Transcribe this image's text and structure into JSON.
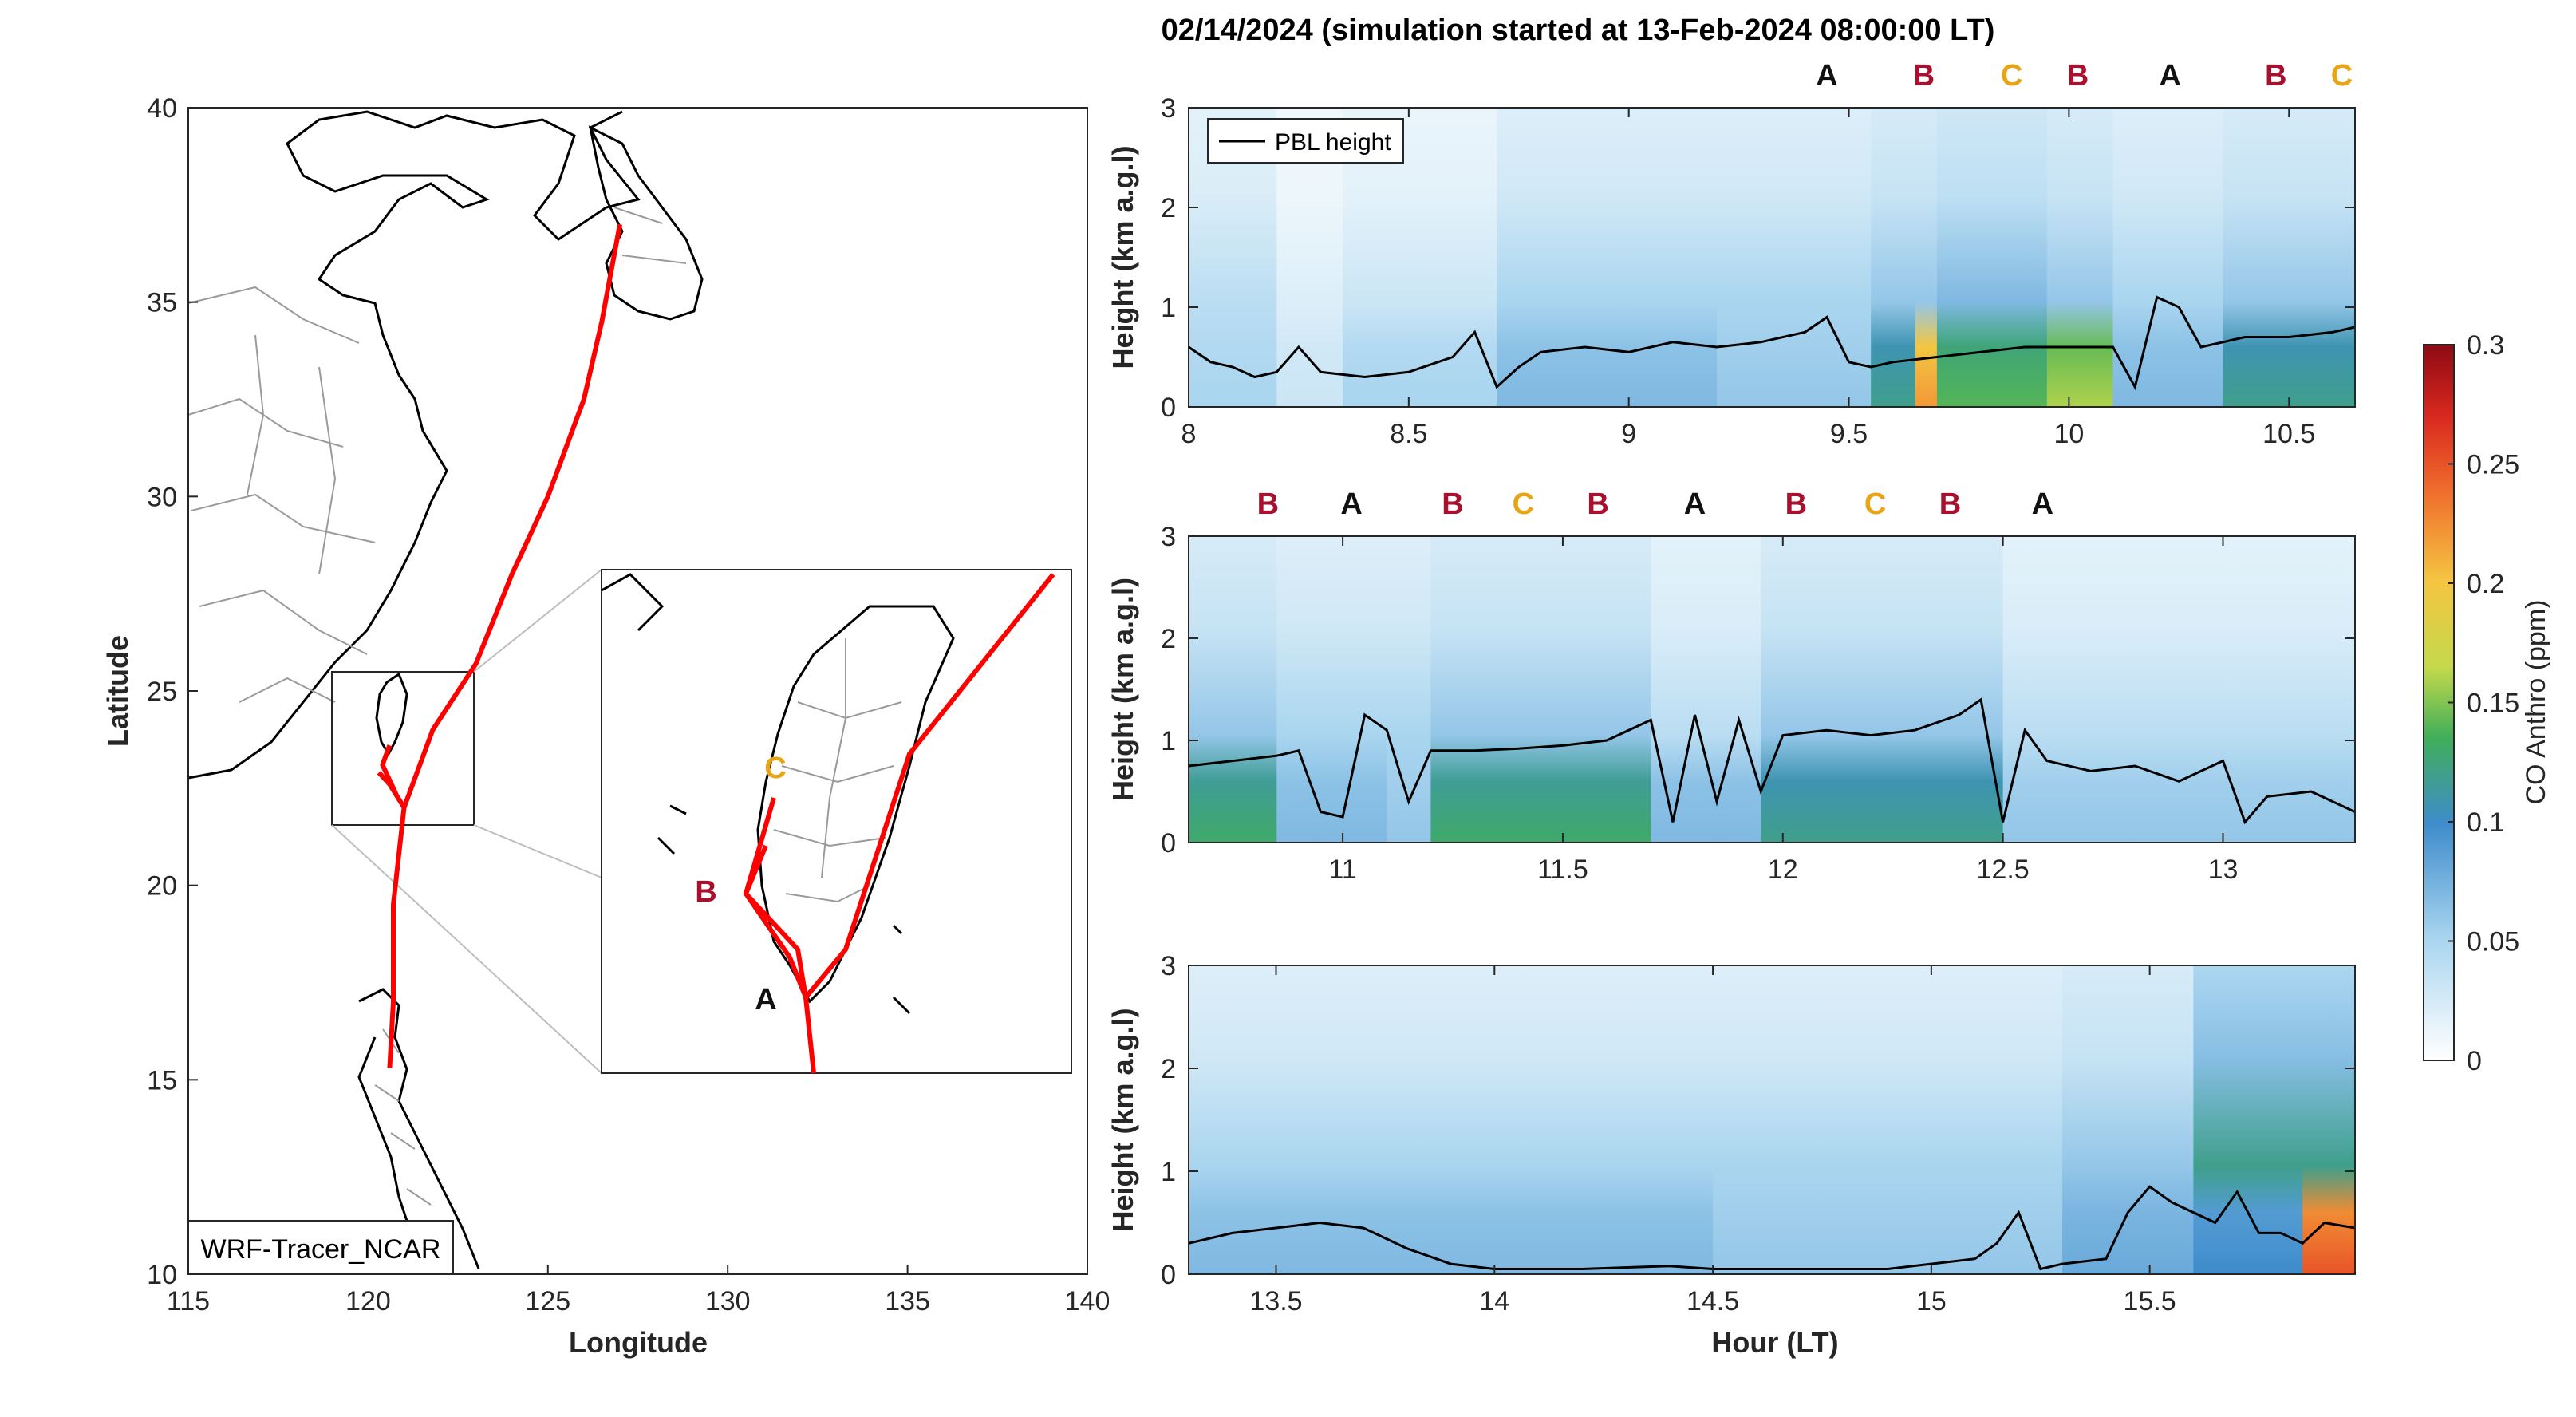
{
  "title": "02/14/2024 (simulation started at 13-Feb-2024 08:00:00 LT)",
  "colors": {
    "A": "#111111",
    "B": "#a8102e",
    "C": "#e8a414",
    "track": "#ff0000",
    "pbl": "#000000"
  },
  "map": {
    "xlabel": "Longitude",
    "ylabel": "Latitude",
    "xlim": [
      115,
      140
    ],
    "ylim": [
      10,
      40
    ],
    "xticks": [
      "115",
      "120",
      "125",
      "130",
      "135",
      "140"
    ],
    "yticks": [
      "10",
      "15",
      "20",
      "25",
      "30",
      "35",
      "40"
    ],
    "label": "WRF-Tracer_NCAR",
    "inset_markers": [
      "A",
      "B",
      "C"
    ],
    "track": [
      [
        127.0,
        37.0
      ],
      [
        126.5,
        34.5
      ],
      [
        126.0,
        32.5
      ],
      [
        125.0,
        30.0
      ],
      [
        124.0,
        28.0
      ],
      [
        123.0,
        25.7
      ],
      [
        121.8,
        24.0
      ],
      [
        121.0,
        22.0
      ],
      [
        120.7,
        19.5
      ],
      [
        120.7,
        17.0
      ],
      [
        120.6,
        15.3
      ]
    ],
    "local_track": [
      [
        120.6,
        23.6
      ],
      [
        120.4,
        23.1
      ],
      [
        120.8,
        22.3
      ],
      [
        121.0,
        22.0
      ],
      [
        120.6,
        22.6
      ],
      [
        120.3,
        22.9
      ]
    ]
  },
  "chart_data": [
    {
      "type": "heatmap",
      "ylabel": "Height (km a.g.l)",
      "xlim": [
        8.0,
        10.65
      ],
      "ylim": [
        0,
        3
      ],
      "xticks": [
        "8",
        "8.5",
        "9",
        "9.5",
        "10",
        "10.5"
      ],
      "yticks": [
        "0",
        "1",
        "2",
        "3"
      ],
      "legend": "PBL height",
      "markers": [
        {
          "label": "A",
          "x": 9.45
        },
        {
          "label": "B",
          "x": 9.67
        },
        {
          "label": "C",
          "x": 9.87
        },
        {
          "label": "B",
          "x": 10.02
        },
        {
          "label": "A",
          "x": 10.23
        },
        {
          "label": "B",
          "x": 10.47
        },
        {
          "label": "C",
          "x": 10.62
        }
      ],
      "pbl": {
        "x": [
          8.0,
          8.05,
          8.1,
          8.15,
          8.2,
          8.25,
          8.3,
          8.4,
          8.5,
          8.6,
          8.65,
          8.7,
          8.75,
          8.8,
          8.9,
          9.0,
          9.1,
          9.2,
          9.3,
          9.4,
          9.45,
          9.5,
          9.55,
          9.6,
          9.7,
          9.8,
          9.9,
          10.0,
          10.1,
          10.15,
          10.2,
          10.25,
          10.3,
          10.35,
          10.4,
          10.5,
          10.6,
          10.65
        ],
        "y": [
          0.6,
          0.45,
          0.4,
          0.3,
          0.35,
          0.6,
          0.35,
          0.3,
          0.35,
          0.5,
          0.75,
          0.2,
          0.4,
          0.55,
          0.6,
          0.55,
          0.65,
          0.6,
          0.65,
          0.75,
          0.9,
          0.45,
          0.4,
          0.45,
          0.5,
          0.55,
          0.6,
          0.6,
          0.6,
          0.2,
          1.1,
          1.0,
          0.6,
          0.65,
          0.7,
          0.7,
          0.75,
          0.8
        ]
      },
      "co_columns": [
        {
          "x0": 8.0,
          "x1": 8.2,
          "surface": 0.05,
          "mid": 0.04
        },
        {
          "x0": 8.2,
          "x1": 8.35,
          "surface": 0.03,
          "mid": 0.02
        },
        {
          "x0": 8.35,
          "x1": 8.7,
          "surface": 0.05,
          "mid": 0.03
        },
        {
          "x0": 8.7,
          "x1": 9.2,
          "surface": 0.07,
          "mid": 0.05
        },
        {
          "x0": 9.2,
          "x1": 9.55,
          "surface": 0.06,
          "mid": 0.05
        },
        {
          "x0": 9.55,
          "x1": 9.65,
          "surface": 0.12,
          "mid": 0.06
        },
        {
          "x0": 9.65,
          "x1": 9.7,
          "surface": 0.22,
          "mid": 0.06
        },
        {
          "x0": 9.7,
          "x1": 9.95,
          "surface": 0.14,
          "mid": 0.07
        },
        {
          "x0": 9.95,
          "x1": 10.1,
          "surface": 0.16,
          "mid": 0.06
        },
        {
          "x0": 10.1,
          "x1": 10.35,
          "surface": 0.07,
          "mid": 0.05
        },
        {
          "x0": 10.35,
          "x1": 10.65,
          "surface": 0.12,
          "mid": 0.06
        }
      ]
    },
    {
      "type": "heatmap",
      "ylabel": "Height (km a.g.l)",
      "xlim": [
        10.65,
        13.3
      ],
      "ylim": [
        0,
        3
      ],
      "xticks": [
        "11",
        "11.5",
        "12",
        "12.5",
        "13"
      ],
      "yticks": [
        "0",
        "1",
        "2",
        "3"
      ],
      "markers": [
        {
          "label": "B",
          "x": 10.83
        },
        {
          "label": "A",
          "x": 11.02
        },
        {
          "label": "B",
          "x": 11.25
        },
        {
          "label": "C",
          "x": 11.41
        },
        {
          "label": "B",
          "x": 11.58
        },
        {
          "label": "A",
          "x": 11.8
        },
        {
          "label": "B",
          "x": 12.03
        },
        {
          "label": "C",
          "x": 12.21
        },
        {
          "label": "B",
          "x": 12.38
        },
        {
          "label": "A",
          "x": 12.59
        }
      ],
      "pbl": {
        "x": [
          10.65,
          10.75,
          10.85,
          10.9,
          10.95,
          11.0,
          11.05,
          11.1,
          11.15,
          11.2,
          11.3,
          11.4,
          11.5,
          11.6,
          11.7,
          11.75,
          11.8,
          11.85,
          11.9,
          11.95,
          12.0,
          12.1,
          12.2,
          12.3,
          12.4,
          12.45,
          12.5,
          12.55,
          12.6,
          12.7,
          12.8,
          12.9,
          13.0,
          13.05,
          13.1,
          13.2,
          13.3
        ],
        "y": [
          0.75,
          0.8,
          0.85,
          0.9,
          0.3,
          0.25,
          1.25,
          1.1,
          0.4,
          0.9,
          0.9,
          0.92,
          0.95,
          1.0,
          1.2,
          0.2,
          1.25,
          0.4,
          1.2,
          0.5,
          1.05,
          1.1,
          1.05,
          1.1,
          1.25,
          1.4,
          0.2,
          1.1,
          0.8,
          0.7,
          0.75,
          0.6,
          0.8,
          0.2,
          0.45,
          0.5,
          0.3
        ]
      },
      "co_columns": [
        {
          "x0": 10.65,
          "x1": 10.85,
          "surface": 0.13,
          "mid": 0.06
        },
        {
          "x0": 10.85,
          "x1": 11.1,
          "surface": 0.07,
          "mid": 0.05
        },
        {
          "x0": 11.1,
          "x1": 11.2,
          "surface": 0.06,
          "mid": 0.05
        },
        {
          "x0": 11.2,
          "x1": 11.7,
          "surface": 0.13,
          "mid": 0.06
        },
        {
          "x0": 11.7,
          "x1": 11.95,
          "surface": 0.07,
          "mid": 0.04
        },
        {
          "x0": 11.95,
          "x1": 12.5,
          "surface": 0.12,
          "mid": 0.06
        },
        {
          "x0": 12.5,
          "x1": 13.3,
          "surface": 0.06,
          "mid": 0.04
        }
      ]
    },
    {
      "type": "heatmap",
      "ylabel": "Height (km a.g.l)",
      "xlabel": "Hour (LT)",
      "xlim": [
        13.3,
        15.97
      ],
      "ylim": [
        0,
        3
      ],
      "xticks": [
        "13.5",
        "14",
        "14.5",
        "15",
        "15.5"
      ],
      "yticks": [
        "0",
        "1",
        "2",
        "3"
      ],
      "pbl": {
        "x": [
          13.3,
          13.4,
          13.5,
          13.6,
          13.7,
          13.8,
          13.9,
          14.0,
          14.2,
          14.4,
          14.5,
          14.7,
          14.9,
          15.0,
          15.1,
          15.15,
          15.2,
          15.25,
          15.3,
          15.4,
          15.45,
          15.5,
          15.55,
          15.6,
          15.65,
          15.7,
          15.75,
          15.8,
          15.85,
          15.9,
          15.97
        ],
        "y": [
          0.3,
          0.4,
          0.45,
          0.5,
          0.45,
          0.25,
          0.1,
          0.05,
          0.05,
          0.08,
          0.05,
          0.05,
          0.05,
          0.1,
          0.15,
          0.3,
          0.6,
          0.05,
          0.1,
          0.15,
          0.6,
          0.85,
          0.7,
          0.6,
          0.5,
          0.8,
          0.4,
          0.4,
          0.3,
          0.5,
          0.45
        ]
      },
      "co_columns": [
        {
          "x0": 13.3,
          "x1": 14.5,
          "surface": 0.07,
          "mid": 0.05
        },
        {
          "x0": 14.5,
          "x1": 15.3,
          "surface": 0.06,
          "mid": 0.05
        },
        {
          "x0": 15.3,
          "x1": 15.6,
          "surface": 0.08,
          "mid": 0.06
        },
        {
          "x0": 15.6,
          "x1": 15.85,
          "surface": 0.1,
          "mid": 0.12
        },
        {
          "x0": 15.85,
          "x1": 15.97,
          "surface": 0.25,
          "mid": 0.12
        }
      ]
    }
  ],
  "colorbar": {
    "label": "CO Anthro (ppm)",
    "ticks": [
      "0",
      "0.05",
      "0.1",
      "0.15",
      "0.2",
      "0.25",
      "0.3"
    ],
    "range": [
      0,
      0.3
    ]
  }
}
